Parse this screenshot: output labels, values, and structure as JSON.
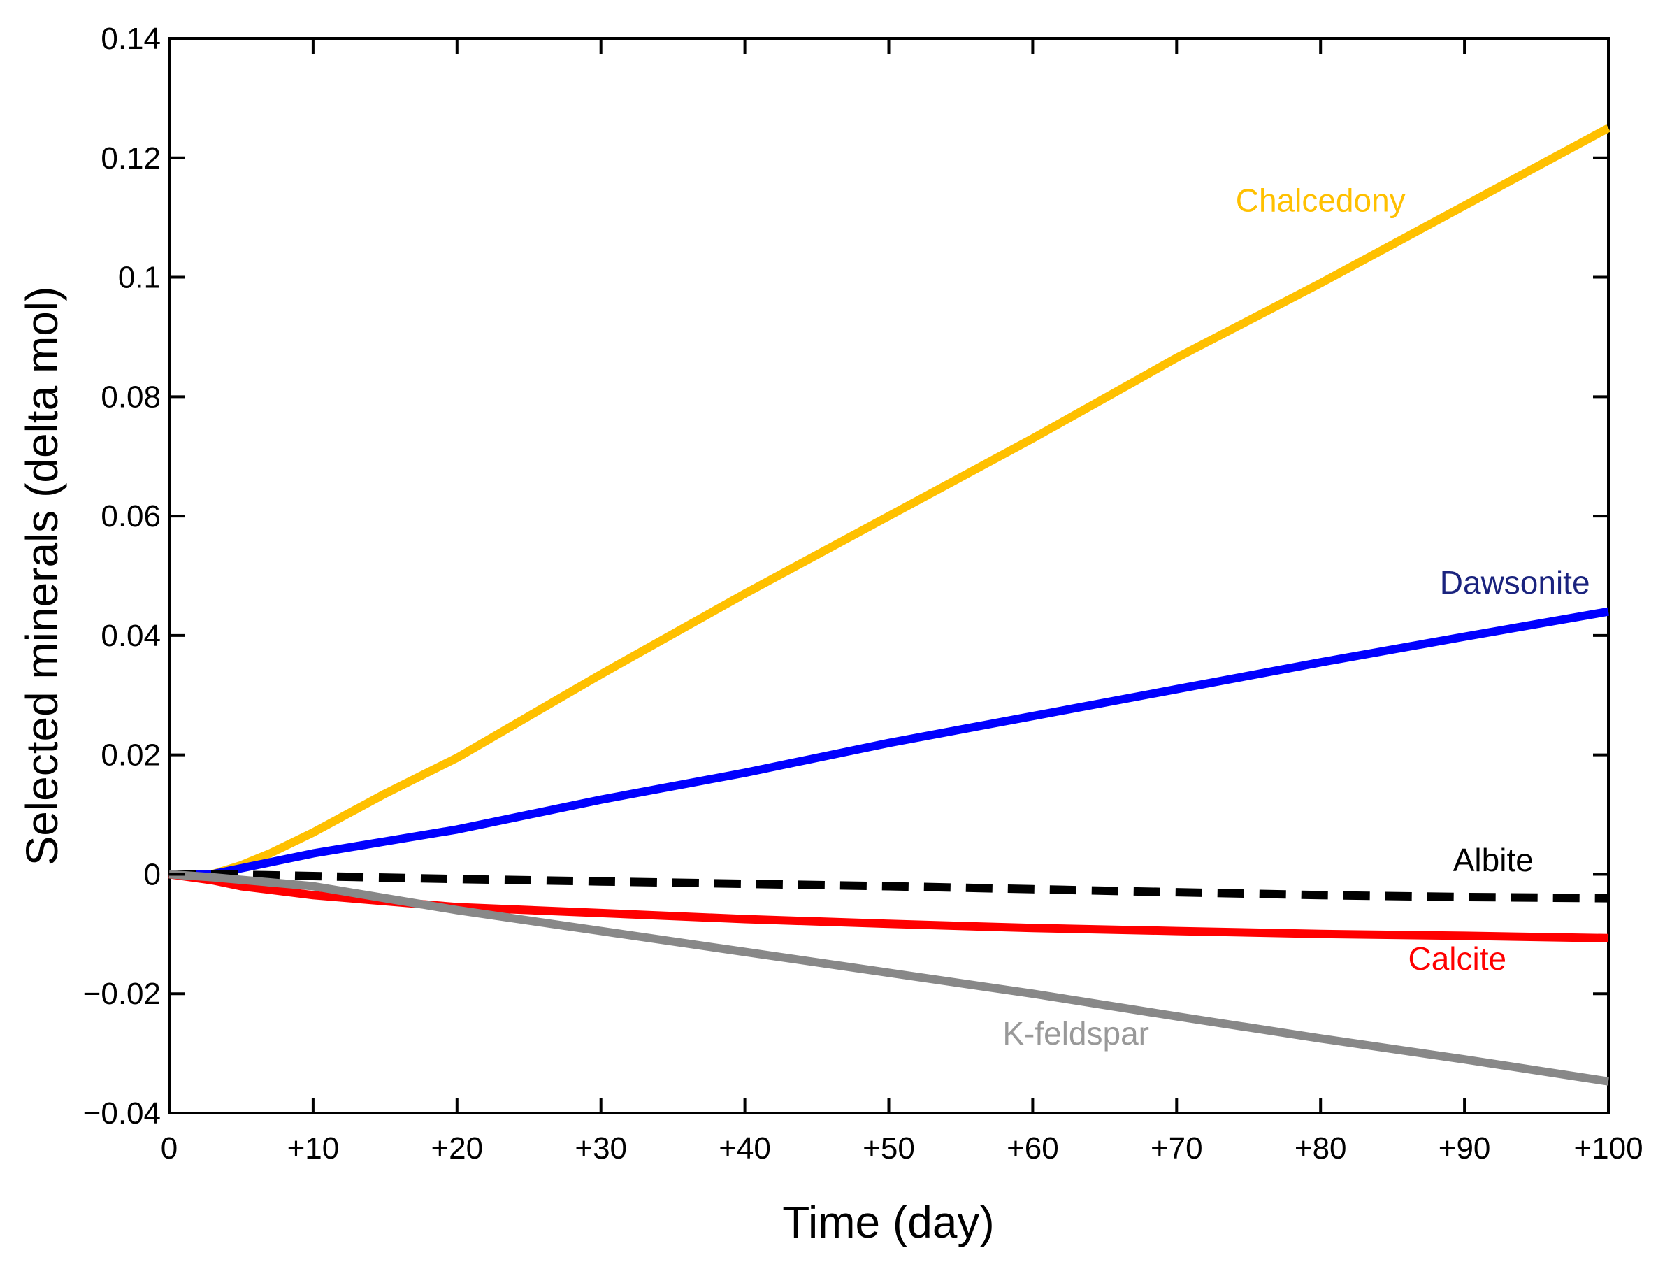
{
  "chart_data": {
    "type": "line",
    "title": "",
    "xlabel": "Time (day)",
    "ylabel": "Selected minerals (delta mol)",
    "xlim": [
      0,
      100
    ],
    "ylim": [
      -0.04,
      0.14
    ],
    "grid": false,
    "x_ticks": [
      0,
      10,
      20,
      30,
      40,
      50,
      60,
      70,
      80,
      90,
      100
    ],
    "x_tick_labels": [
      "0",
      "+10",
      "+20",
      "+30",
      "+40",
      "+50",
      "+60",
      "+70",
      "+80",
      "+90",
      "+100"
    ],
    "y_ticks": [
      -0.04,
      -0.02,
      0,
      0.02,
      0.04,
      0.06,
      0.08,
      0.1,
      0.12,
      0.14
    ],
    "y_tick_labels": [
      "−0.04",
      "−0.02",
      "0",
      "0.02",
      "0.04",
      "0.06",
      "0.08",
      "0.1",
      "0.12",
      "0.14"
    ],
    "series": [
      {
        "name": "Chalcedony",
        "color": "#FFC000",
        "dashed": false,
        "label_color": "#FFC000",
        "x": [
          0,
          2,
          3,
          5,
          7,
          10,
          15,
          20,
          30,
          40,
          50,
          60,
          70,
          80,
          90,
          100
        ],
        "values": [
          0,
          0,
          0,
          0.0015,
          0.0035,
          0.007,
          0.0135,
          0.0195,
          0.0335,
          0.047,
          0.06,
          0.073,
          0.0865,
          0.099,
          0.112,
          0.125
        ]
      },
      {
        "name": "Dawsonite",
        "color": "#0000FF",
        "dashed": false,
        "label_color": "#1A237E",
        "x": [
          0,
          2,
          3,
          5,
          7,
          10,
          15,
          20,
          30,
          40,
          50,
          60,
          70,
          80,
          90,
          100
        ],
        "values": [
          0,
          0,
          0,
          0.001,
          0.002,
          0.0035,
          0.0055,
          0.0075,
          0.0125,
          0.017,
          0.022,
          0.0265,
          0.031,
          0.0355,
          0.0398,
          0.044
        ]
      },
      {
        "name": "Albite",
        "color": "#000000",
        "dashed": true,
        "label_color": "#000000",
        "x": [
          0,
          3,
          10,
          20,
          30,
          40,
          50,
          60,
          70,
          80,
          90,
          100
        ],
        "values": [
          0,
          0,
          -0.0003,
          -0.0008,
          -0.0012,
          -0.0016,
          -0.002,
          -0.0025,
          -0.003,
          -0.0035,
          -0.0038,
          -0.004
        ]
      },
      {
        "name": "Calcite",
        "color": "#FF0000",
        "dashed": false,
        "label_color": "#FF0000",
        "x": [
          0,
          3,
          5,
          10,
          15,
          20,
          30,
          40,
          50,
          60,
          70,
          80,
          90,
          100
        ],
        "values": [
          0,
          -0.001,
          -0.002,
          -0.0035,
          -0.0045,
          -0.0055,
          -0.0065,
          -0.0075,
          -0.0083,
          -0.009,
          -0.0095,
          -0.01,
          -0.0103,
          -0.0107
        ]
      },
      {
        "name": "K-feldspar",
        "color": "#888888",
        "dashed": false,
        "label_color": "#999999",
        "x": [
          0,
          3,
          10,
          20,
          30,
          40,
          50,
          60,
          70,
          80,
          90,
          100
        ],
        "values": [
          0,
          -0.0005,
          -0.002,
          -0.006,
          -0.0095,
          -0.013,
          -0.0165,
          -0.02,
          -0.0238,
          -0.0275,
          -0.031,
          -0.0347
        ]
      }
    ],
    "annotations": [
      {
        "text": "Chalcedony",
        "series": "Chalcedony",
        "x": 80,
        "y": 0.111
      },
      {
        "text": "Dawsonite",
        "series": "Dawsonite",
        "x": 93.5,
        "y": 0.047
      },
      {
        "text": "Albite",
        "series": "Albite",
        "x": 92,
        "y": 0.0005
      },
      {
        "text": "Calcite",
        "series": "Calcite",
        "x": 89.5,
        "y": -0.016
      },
      {
        "text": "K-feldspar",
        "series": "K-feldspar",
        "x": 63,
        "y": -0.0285
      }
    ]
  }
}
